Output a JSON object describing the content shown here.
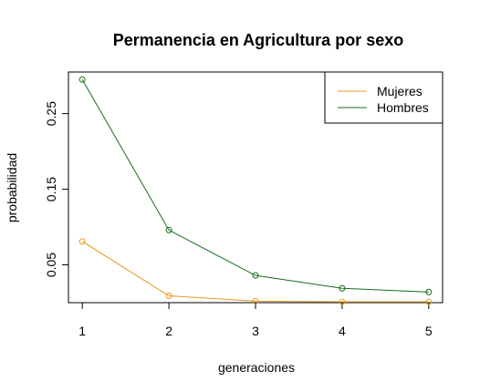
{
  "chart_data": {
    "type": "line",
    "title": "Permanencia en Agricultura por sexo",
    "xlabel": "generaciones",
    "ylabel": "probabilidad",
    "x": [
      1,
      2,
      3,
      4,
      5
    ],
    "xlim": [
      0.84,
      5.16
    ],
    "ylim": [
      0.0,
      0.305
    ],
    "x_ticks": [
      1,
      2,
      3,
      4,
      5
    ],
    "y_ticks": [
      0.05,
      0.15,
      0.25
    ],
    "y_tick_labels": [
      "0.05",
      "0.15",
      "0.25"
    ],
    "grid": false,
    "legend_position": "top-right",
    "series": [
      {
        "name": "Mujeres",
        "color": "#e69a1c",
        "values": [
          0.081,
          0.009,
          0.002,
          0.001,
          0.001
        ]
      },
      {
        "name": "Hombres",
        "color": "#1b6b1b",
        "values": [
          0.295,
          0.096,
          0.036,
          0.019,
          0.014
        ]
      }
    ]
  }
}
